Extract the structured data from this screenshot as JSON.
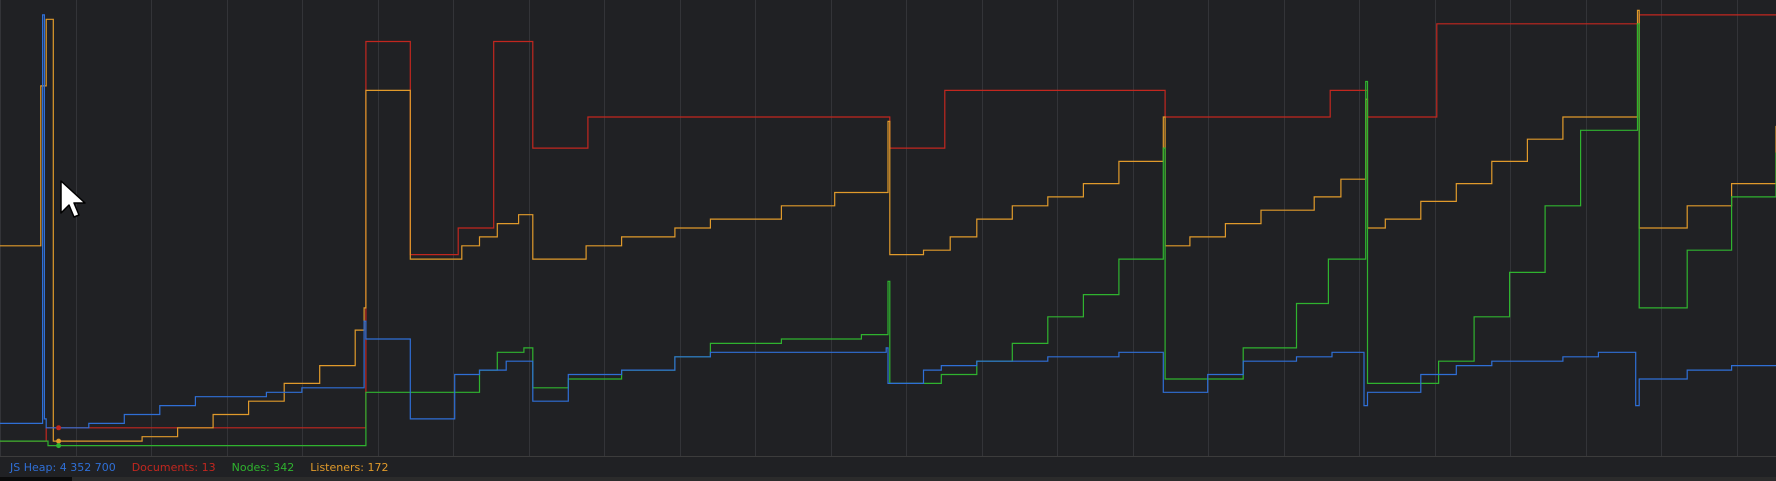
{
  "legend": [
    {
      "label": "JS Heap: ",
      "value": "4 352 700",
      "color": "#2f6fd6"
    },
    {
      "label": "Documents: ",
      "value": "13",
      "color": "#c2271f"
    },
    {
      "label": "Nodes: ",
      "value": "342",
      "color": "#2fb32f"
    },
    {
      "label": "Listeners: ",
      "value": "172",
      "color": "#e09a2b"
    }
  ],
  "chart_data": {
    "type": "line",
    "step": true,
    "grid": true,
    "title": "",
    "xlabel": "",
    "ylabel": "",
    "ylim": [
      0,
      100
    ],
    "colors": {
      "background": "#202124",
      "grid": "#333438"
    },
    "series": [
      {
        "name": "Documents",
        "color": "#c2271f",
        "x": [
          0,
          2.5,
          2.6,
          20.5,
          20.6,
          23,
          23.1,
          25.6,
          25.8,
          27.7,
          27.8,
          29.9,
          30,
          33,
          33.1,
          50,
          50.1,
          53.1,
          53.2,
          65.5,
          65.6,
          74.8,
          74.9,
          76.9,
          77,
          80.8,
          80.9,
          92.2,
          92.3,
          100
        ],
        "y": [
          2,
          2,
          5,
          5,
          92,
          92,
          44,
          44,
          50,
          50,
          92,
          92,
          68,
          68,
          75,
          75,
          68,
          68,
          81,
          81,
          75,
          75,
          81,
          81,
          75,
          75,
          96,
          96,
          98,
          98
        ]
      },
      {
        "name": "Listeners",
        "color": "#e09a2b",
        "x": [
          0,
          2,
          2.3,
          2.6,
          3,
          5,
          8,
          10,
          12,
          14,
          16,
          18,
          20,
          20.5,
          20.6,
          23,
          23.1,
          25.6,
          26,
          27,
          28,
          29.2,
          29.8,
          30,
          33,
          35,
          38,
          40,
          44,
          47,
          50,
          50.1,
          52,
          53.5,
          55,
          57,
          59,
          61,
          63,
          65.5,
          65.6,
          67,
          69,
          71,
          74,
          75.5,
          76.9,
          77,
          78,
          80,
          82,
          84,
          86,
          88,
          92.2,
          92.3,
          95,
          97.5,
          100
        ],
        "y": [
          46,
          46,
          82,
          97,
          2,
          2,
          3,
          5,
          8,
          11,
          15,
          19,
          27,
          32,
          81,
          81,
          43,
          43,
          46,
          48,
          51,
          53,
          53,
          43,
          46,
          48,
          50,
          52,
          55,
          58,
          74,
          44,
          45,
          48,
          52,
          55,
          57,
          60,
          65,
          75,
          46,
          48,
          51,
          54,
          57,
          61,
          79,
          50,
          52,
          56,
          60,
          65,
          70,
          75,
          99,
          50,
          55,
          60,
          73
        ]
      },
      {
        "name": "Nodes",
        "color": "#2fb32f",
        "x": [
          0,
          2.5,
          2.7,
          5,
          10,
          15,
          20.5,
          20.6,
          23,
          25.8,
          27,
          28,
          29.5,
          30,
          32,
          35,
          38,
          40,
          44,
          47,
          48.5,
          50,
          50.1,
          53,
          55,
          57,
          59,
          61,
          63,
          65.5,
          65.6,
          68,
          70,
          73,
          74.8,
          76.9,
          77,
          79,
          81,
          83,
          85,
          87,
          89,
          92.2,
          92.3,
          95,
          97.5,
          100
        ],
        "y": [
          2,
          2,
          1,
          1,
          1,
          1,
          1,
          13,
          13,
          13,
          18,
          22,
          23,
          14,
          16,
          18,
          21,
          24,
          25,
          25,
          26,
          38,
          15,
          17,
          20,
          24,
          30,
          35,
          43,
          68,
          16,
          16,
          23,
          33,
          43,
          83,
          15,
          15,
          20,
          30,
          40,
          55,
          72,
          96,
          32,
          45,
          57,
          67
        ]
      },
      {
        "name": "JS Heap",
        "color": "#2f6fd6",
        "x": [
          0,
          2,
          2.4,
          2.5,
          2.6,
          5,
          7,
          9,
          11,
          13,
          15,
          17,
          19,
          20.5,
          20.6,
          23,
          23.1,
          25.6,
          27,
          28.5,
          29.9,
          30,
          32,
          35,
          38,
          40,
          44,
          47,
          49.9,
          50,
          52,
          53,
          55,
          57,
          59,
          61,
          63,
          65.4,
          65.5,
          68,
          70,
          73,
          75,
          76.8,
          77,
          80,
          82,
          84,
          86,
          88,
          90,
          92.1,
          92.3,
          95,
          97.5,
          100
        ],
        "y": [
          6,
          6,
          98,
          7,
          5,
          6,
          8,
          10,
          12,
          12,
          13,
          14,
          14,
          29,
          25,
          25,
          7,
          17,
          18,
          20,
          20,
          11,
          17,
          18,
          21,
          22,
          22,
          22,
          23,
          15,
          18,
          19,
          20,
          20,
          21,
          21,
          22,
          22,
          13,
          17,
          20,
          21,
          22,
          10,
          13,
          17,
          19,
          20,
          20,
          21,
          22,
          10,
          16,
          18,
          19,
          19
        ]
      }
    ]
  }
}
